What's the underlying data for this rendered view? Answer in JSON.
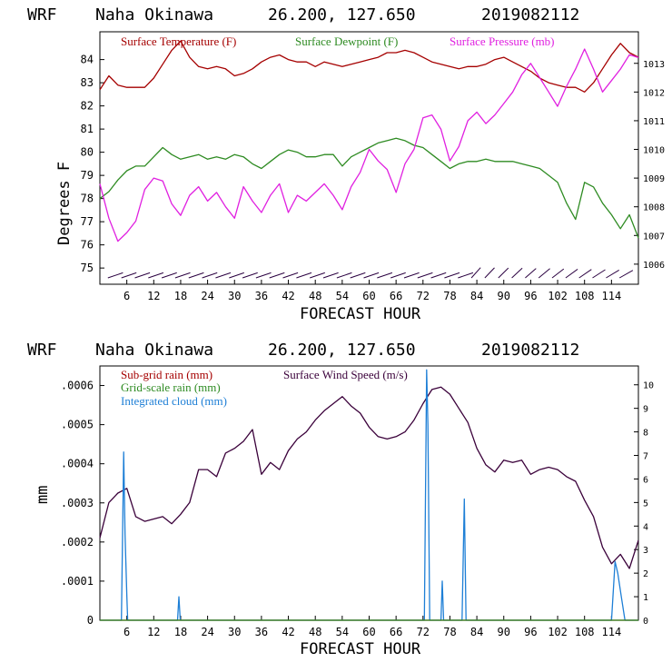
{
  "charts": [
    {
      "header": {
        "model": "WRF",
        "station": "Naha Okinawa",
        "coords": "26.200, 127.650",
        "run": "2019082112"
      },
      "legend": {
        "temperature": "Surface Temperature (F)",
        "dewpoint": "Surface Dewpoint (F)",
        "pressure": "Surface Pressure (mb)"
      },
      "ylabel": "Degrees F",
      "xlabel": "FORECAST HOUR",
      "left_ticks": [
        "75",
        "76",
        "77",
        "78",
        "79",
        "80",
        "81",
        "82",
        "83",
        "84"
      ],
      "right_ticks": [
        "1006",
        "1007",
        "1008",
        "1009",
        "1010",
        "1011",
        "1012",
        "1013"
      ],
      "x_ticks": [
        "6",
        "12",
        "18",
        "24",
        "30",
        "36",
        "42",
        "48",
        "54",
        "60",
        "66",
        "72",
        "78",
        "84",
        "90",
        "96",
        "102",
        "108",
        "114"
      ]
    },
    {
      "header": {
        "model": "WRF",
        "station": "Naha Okinawa",
        "coords": "26.200, 127.650",
        "run": "2019082112"
      },
      "legend": {
        "subgrid": "Sub-grid rain (mm)",
        "wind": "Surface Wind Speed (m/s)",
        "gridscale": "Grid-scale rain (mm)",
        "cloud": "Integrated cloud (mm)"
      },
      "ylabel": "mm",
      "xlabel": "FORECAST HOUR",
      "left_ticks": [
        "0",
        ".0001",
        ".0002",
        ".0003",
        ".0004",
        ".0005",
        ".0006"
      ],
      "right_ticks": [
        "0",
        "1",
        "2",
        "3",
        "4",
        "5",
        "6",
        "7",
        "8",
        "9",
        "10"
      ],
      "x_ticks": [
        "6",
        "12",
        "18",
        "24",
        "30",
        "36",
        "42",
        "48",
        "54",
        "60",
        "66",
        "72",
        "78",
        "84",
        "90",
        "96",
        "102",
        "108",
        "114"
      ]
    }
  ],
  "colors": {
    "temperature": "#a50000",
    "dewpoint": "#2e8b22",
    "pressure": "#e020e0",
    "wind": "#3a003a",
    "cloud": "#1e7fd6",
    "axis": "#000000"
  },
  "chart_data": [
    {
      "type": "line",
      "title": "WRF Naha Okinawa 26.200, 127.650 2019082112",
      "xlabel": "FORECAST HOUR",
      "ylabel": "Degrees F",
      "xlim": [
        0,
        120
      ],
      "ylim": [
        74.3,
        85.2
      ],
      "y2lim": [
        1005.3,
        1014.1
      ],
      "series": [
        {
          "name": "Surface Temperature (F)",
          "axis": "left",
          "color": "#a50000",
          "x": [
            0,
            2,
            4,
            6,
            8,
            10,
            12,
            14,
            16,
            18,
            20,
            22,
            24,
            26,
            28,
            30,
            32,
            34,
            36,
            38,
            40,
            42,
            44,
            46,
            48,
            50,
            52,
            54,
            56,
            58,
            60,
            62,
            64,
            66,
            68,
            70,
            72,
            74,
            76,
            78,
            80,
            82,
            84,
            86,
            88,
            90,
            92,
            94,
            96,
            98,
            100,
            102,
            104,
            106,
            108,
            110,
            112,
            114,
            116,
            118,
            120
          ],
          "y": [
            82.7,
            83.3,
            82.9,
            82.8,
            82.8,
            82.8,
            83.2,
            83.8,
            84.4,
            84.8,
            84.1,
            83.7,
            83.6,
            83.7,
            83.6,
            83.3,
            83.4,
            83.6,
            83.9,
            84.1,
            84.2,
            84.0,
            83.9,
            83.9,
            83.7,
            83.9,
            83.8,
            83.7,
            83.8,
            83.9,
            84.0,
            84.1,
            84.3,
            84.3,
            84.4,
            84.3,
            84.1,
            83.9,
            83.8,
            83.7,
            83.6,
            83.7,
            83.7,
            83.8,
            84.0,
            84.1,
            83.9,
            83.7,
            83.5,
            83.2,
            83.0,
            82.9,
            82.8,
            82.8,
            82.6,
            83.0,
            83.6,
            84.2,
            84.7,
            84.3,
            84.1
          ]
        },
        {
          "name": "Surface Dewpoint (F)",
          "axis": "left",
          "color": "#2e8b22",
          "x": [
            0,
            2,
            4,
            6,
            8,
            10,
            12,
            14,
            16,
            18,
            20,
            22,
            24,
            26,
            28,
            30,
            32,
            34,
            36,
            38,
            40,
            42,
            44,
            46,
            48,
            50,
            52,
            54,
            56,
            58,
            60,
            62,
            64,
            66,
            68,
            70,
            72,
            74,
            76,
            78,
            80,
            82,
            84,
            86,
            88,
            90,
            92,
            94,
            96,
            98,
            100,
            102,
            104,
            106,
            108,
            110,
            112,
            114,
            116,
            118,
            120
          ],
          "y": [
            78.0,
            78.3,
            78.8,
            79.2,
            79.4,
            79.4,
            79.8,
            80.2,
            79.9,
            79.7,
            79.8,
            79.9,
            79.7,
            79.8,
            79.7,
            79.9,
            79.8,
            79.5,
            79.3,
            79.6,
            79.9,
            80.1,
            80.0,
            79.8,
            79.8,
            79.9,
            79.9,
            79.4,
            79.8,
            80.0,
            80.2,
            80.4,
            80.5,
            80.6,
            80.5,
            80.3,
            80.2,
            79.9,
            79.6,
            79.3,
            79.5,
            79.6,
            79.6,
            79.7,
            79.6,
            79.6,
            79.6,
            79.5,
            79.4,
            79.3,
            79.0,
            78.7,
            77.8,
            77.1,
            78.7,
            78.5,
            77.8,
            77.3,
            76.7,
            77.3,
            76.3
          ]
        },
        {
          "name": "Surface Pressure (mb)",
          "axis": "right",
          "color": "#e020e0",
          "x": [
            0,
            2,
            4,
            6,
            8,
            10,
            12,
            14,
            16,
            18,
            20,
            22,
            24,
            26,
            28,
            30,
            32,
            34,
            36,
            38,
            40,
            42,
            44,
            46,
            48,
            50,
            52,
            54,
            56,
            58,
            60,
            62,
            64,
            66,
            68,
            70,
            72,
            74,
            76,
            78,
            80,
            82,
            84,
            86,
            88,
            90,
            92,
            94,
            96,
            98,
            100,
            102,
            104,
            106,
            108,
            110,
            112,
            114,
            116,
            118,
            120
          ],
          "y": [
            1008.8,
            1007.6,
            1006.8,
            1007.1,
            1007.5,
            1008.6,
            1009.0,
            1008.9,
            1008.1,
            1007.7,
            1008.4,
            1008.7,
            1008.2,
            1008.5,
            1008.0,
            1007.6,
            1008.7,
            1008.2,
            1007.8,
            1008.4,
            1008.8,
            1007.8,
            1008.4,
            1008.2,
            1008.5,
            1008.8,
            1008.4,
            1007.9,
            1008.7,
            1009.2,
            1010.0,
            1009.6,
            1009.3,
            1008.5,
            1009.5,
            1010.0,
            1011.1,
            1011.2,
            1010.7,
            1009.6,
            1010.1,
            1011.0,
            1011.3,
            1010.9,
            1011.2,
            1011.6,
            1012.0,
            1012.6,
            1013.0,
            1012.5,
            1012.0,
            1011.5,
            1012.2,
            1012.8,
            1013.5,
            1012.8,
            1012.0,
            1012.4,
            1012.8,
            1013.3,
            1013.2
          ]
        }
      ]
    },
    {
      "type": "line",
      "title": "WRF Naha Okinawa 26.200, 127.650 2019082112",
      "xlabel": "FORECAST HOUR",
      "ylabel": "mm",
      "xlim": [
        0,
        120
      ],
      "ylim": [
        0,
        0.00065
      ],
      "y2lim": [
        0,
        10.8
      ],
      "series": [
        {
          "name": "Surface Wind Speed (m/s)",
          "axis": "right",
          "color": "#3a003a",
          "x": [
            0,
            2,
            4,
            6,
            8,
            10,
            12,
            14,
            16,
            18,
            20,
            22,
            24,
            26,
            28,
            30,
            32,
            34,
            36,
            38,
            40,
            42,
            44,
            46,
            48,
            50,
            52,
            54,
            56,
            58,
            60,
            62,
            64,
            66,
            68,
            70,
            72,
            74,
            76,
            78,
            80,
            82,
            84,
            86,
            88,
            90,
            92,
            94,
            96,
            98,
            100,
            102,
            104,
            106,
            108,
            110,
            112,
            114,
            116,
            118,
            120
          ],
          "y": [
            3.5,
            5.0,
            5.4,
            5.6,
            4.4,
            4.2,
            4.3,
            4.4,
            4.1,
            4.5,
            5.0,
            6.4,
            6.4,
            6.1,
            7.1,
            7.3,
            7.6,
            8.1,
            6.2,
            6.7,
            6.4,
            7.2,
            7.7,
            8.0,
            8.5,
            8.9,
            9.2,
            9.5,
            9.1,
            8.8,
            8.2,
            7.8,
            7.7,
            7.8,
            8.0,
            8.5,
            9.2,
            9.8,
            9.9,
            9.6,
            9.0,
            8.4,
            7.3,
            6.6,
            6.3,
            6.8,
            6.7,
            6.8,
            6.2,
            6.4,
            6.5,
            6.4,
            6.1,
            5.9,
            5.1,
            4.4,
            3.1,
            2.4,
            2.8,
            2.2,
            3.4
          ]
        },
        {
          "name": "Integrated cloud (mm)",
          "axis": "left",
          "color": "#1e7fd6",
          "x": [
            0,
            4.8,
            5.3,
            5.6,
            6.0,
            6.2,
            17.3,
            17.6,
            17.9,
            72.3,
            72.8,
            73.1,
            73.5,
            76.0,
            76.3,
            76.6,
            80.7,
            81.2,
            81.6,
            114.0,
            114.8,
            115.4,
            116.2,
            117.0,
            120
          ],
          "y": [
            0,
            0,
            0.00043,
            0.00022,
            6e-05,
            0,
            0,
            6e-05,
            0,
            0,
            0.00064,
            0.0005,
            0,
            0,
            0.0001,
            0,
            0,
            0.00031,
            0,
            0,
            0.00015,
            0.00012,
            6e-05,
            0,
            0
          ]
        },
        {
          "name": "Sub-grid rain (mm)",
          "axis": "left",
          "color": "#a50000",
          "x": [
            0,
            120
          ],
          "y": [
            0,
            0
          ]
        },
        {
          "name": "Grid-scale rain (mm)",
          "axis": "left",
          "color": "#2e8b22",
          "x": [
            0,
            120
          ],
          "y": [
            0,
            0
          ]
        }
      ]
    }
  ]
}
